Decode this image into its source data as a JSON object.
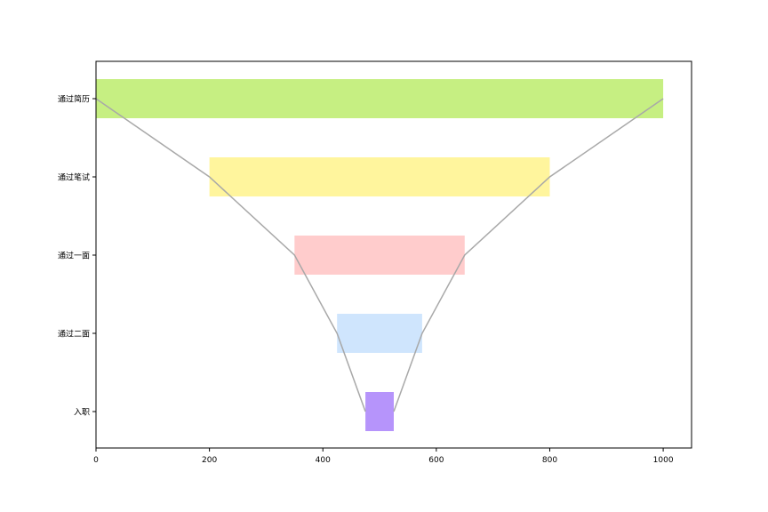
{
  "chart_data": {
    "type": "bar",
    "orientation": "horizontal-funnel",
    "categories": [
      "通过简历",
      "通过笔试",
      "通过一面",
      "通过二面",
      "入职"
    ],
    "values": [
      1000,
      600,
      300,
      150,
      50
    ],
    "centre": 500,
    "colors": [
      "#c6ef82",
      "#fff59d",
      "#ffcccc",
      "#cfe5fd",
      "#b694fb"
    ],
    "connector_color": "#a8a8a8",
    "xlim": [
      0,
      1050
    ],
    "xticks": [
      0,
      200,
      400,
      600,
      800,
      1000
    ],
    "title": "",
    "xlabel": "",
    "ylabel": "",
    "grid": false,
    "legend": "none"
  }
}
